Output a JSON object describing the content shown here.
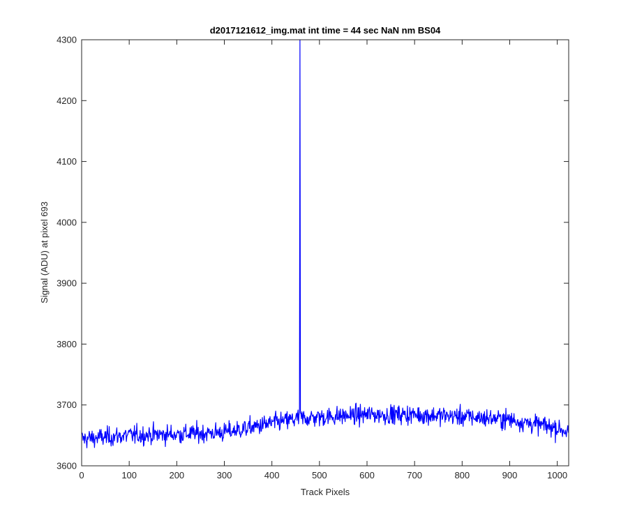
{
  "chart_data": {
    "type": "line",
    "title": "d2017121612_img.mat int time = 44 sec  NaN nm BS04",
    "xlabel": "Track Pixels",
    "ylabel": "Signal (ADU) at pixel 693",
    "xlim": [
      0,
      1024
    ],
    "ylim": [
      3600,
      4300
    ],
    "xticks": [
      0,
      100,
      200,
      300,
      400,
      500,
      600,
      700,
      800,
      900,
      1000
    ],
    "yticks": [
      3600,
      3700,
      3800,
      3900,
      4000,
      4100,
      4200,
      4300
    ],
    "grid": false,
    "series": [
      {
        "color": "#0000ff",
        "baseline_profile": [
          [
            0,
            3644
          ],
          [
            100,
            3650
          ],
          [
            200,
            3652
          ],
          [
            300,
            3655
          ],
          [
            350,
            3662
          ],
          [
            400,
            3670
          ],
          [
            460,
            3678
          ],
          [
            500,
            3680
          ],
          [
            600,
            3684
          ],
          [
            700,
            3684
          ],
          [
            800,
            3681
          ],
          [
            900,
            3676
          ],
          [
            1000,
            3662
          ],
          [
            1024,
            3656
          ]
        ],
        "noise_amplitude": 22,
        "spike": {
          "x": 459,
          "y": 4300
        }
      }
    ]
  }
}
